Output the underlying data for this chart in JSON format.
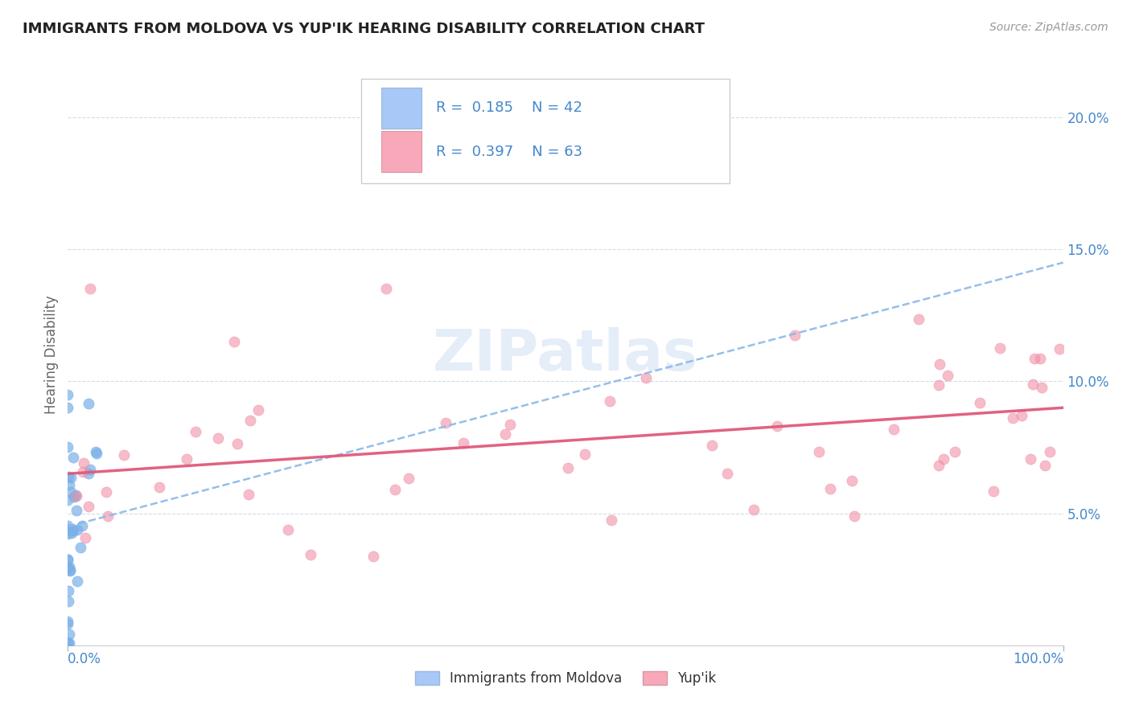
{
  "title": "IMMIGRANTS FROM MOLDOVA VS YUP'IK HEARING DISABILITY CORRELATION CHART",
  "source": "Source: ZipAtlas.com",
  "ylabel": "Hearing Disability",
  "legend_label1": "Immigrants from Moldova",
  "legend_label2": "Yup'ik",
  "R1": 0.185,
  "N1": 42,
  "R2": 0.397,
  "N2": 63,
  "xlim": [
    0.0,
    1.0
  ],
  "ylim": [
    0.0,
    0.22
  ],
  "yticks": [
    0.05,
    0.1,
    0.15,
    0.2
  ],
  "ytick_labels": [
    "5.0%",
    "10.0%",
    "15.0%",
    "20.0%"
  ],
  "xtick_labels_bottom": [
    "0.0%",
    "100.0%"
  ],
  "color1": "#a8c8f8",
  "color2": "#f8a8b8",
  "line_color1": "#8ab8e8",
  "line_color2": "#e05a7a",
  "scatter_color1": "#7ab0e8",
  "scatter_color2": "#f090a8",
  "background_color": "#ffffff",
  "watermark": "ZIPatlas",
  "tick_color": "#4488cc",
  "title_color": "#222222",
  "ylabel_color": "#666666",
  "grid_color": "#d0dde8",
  "legend_border_color": "#cccccc",
  "source_color": "#999999"
}
